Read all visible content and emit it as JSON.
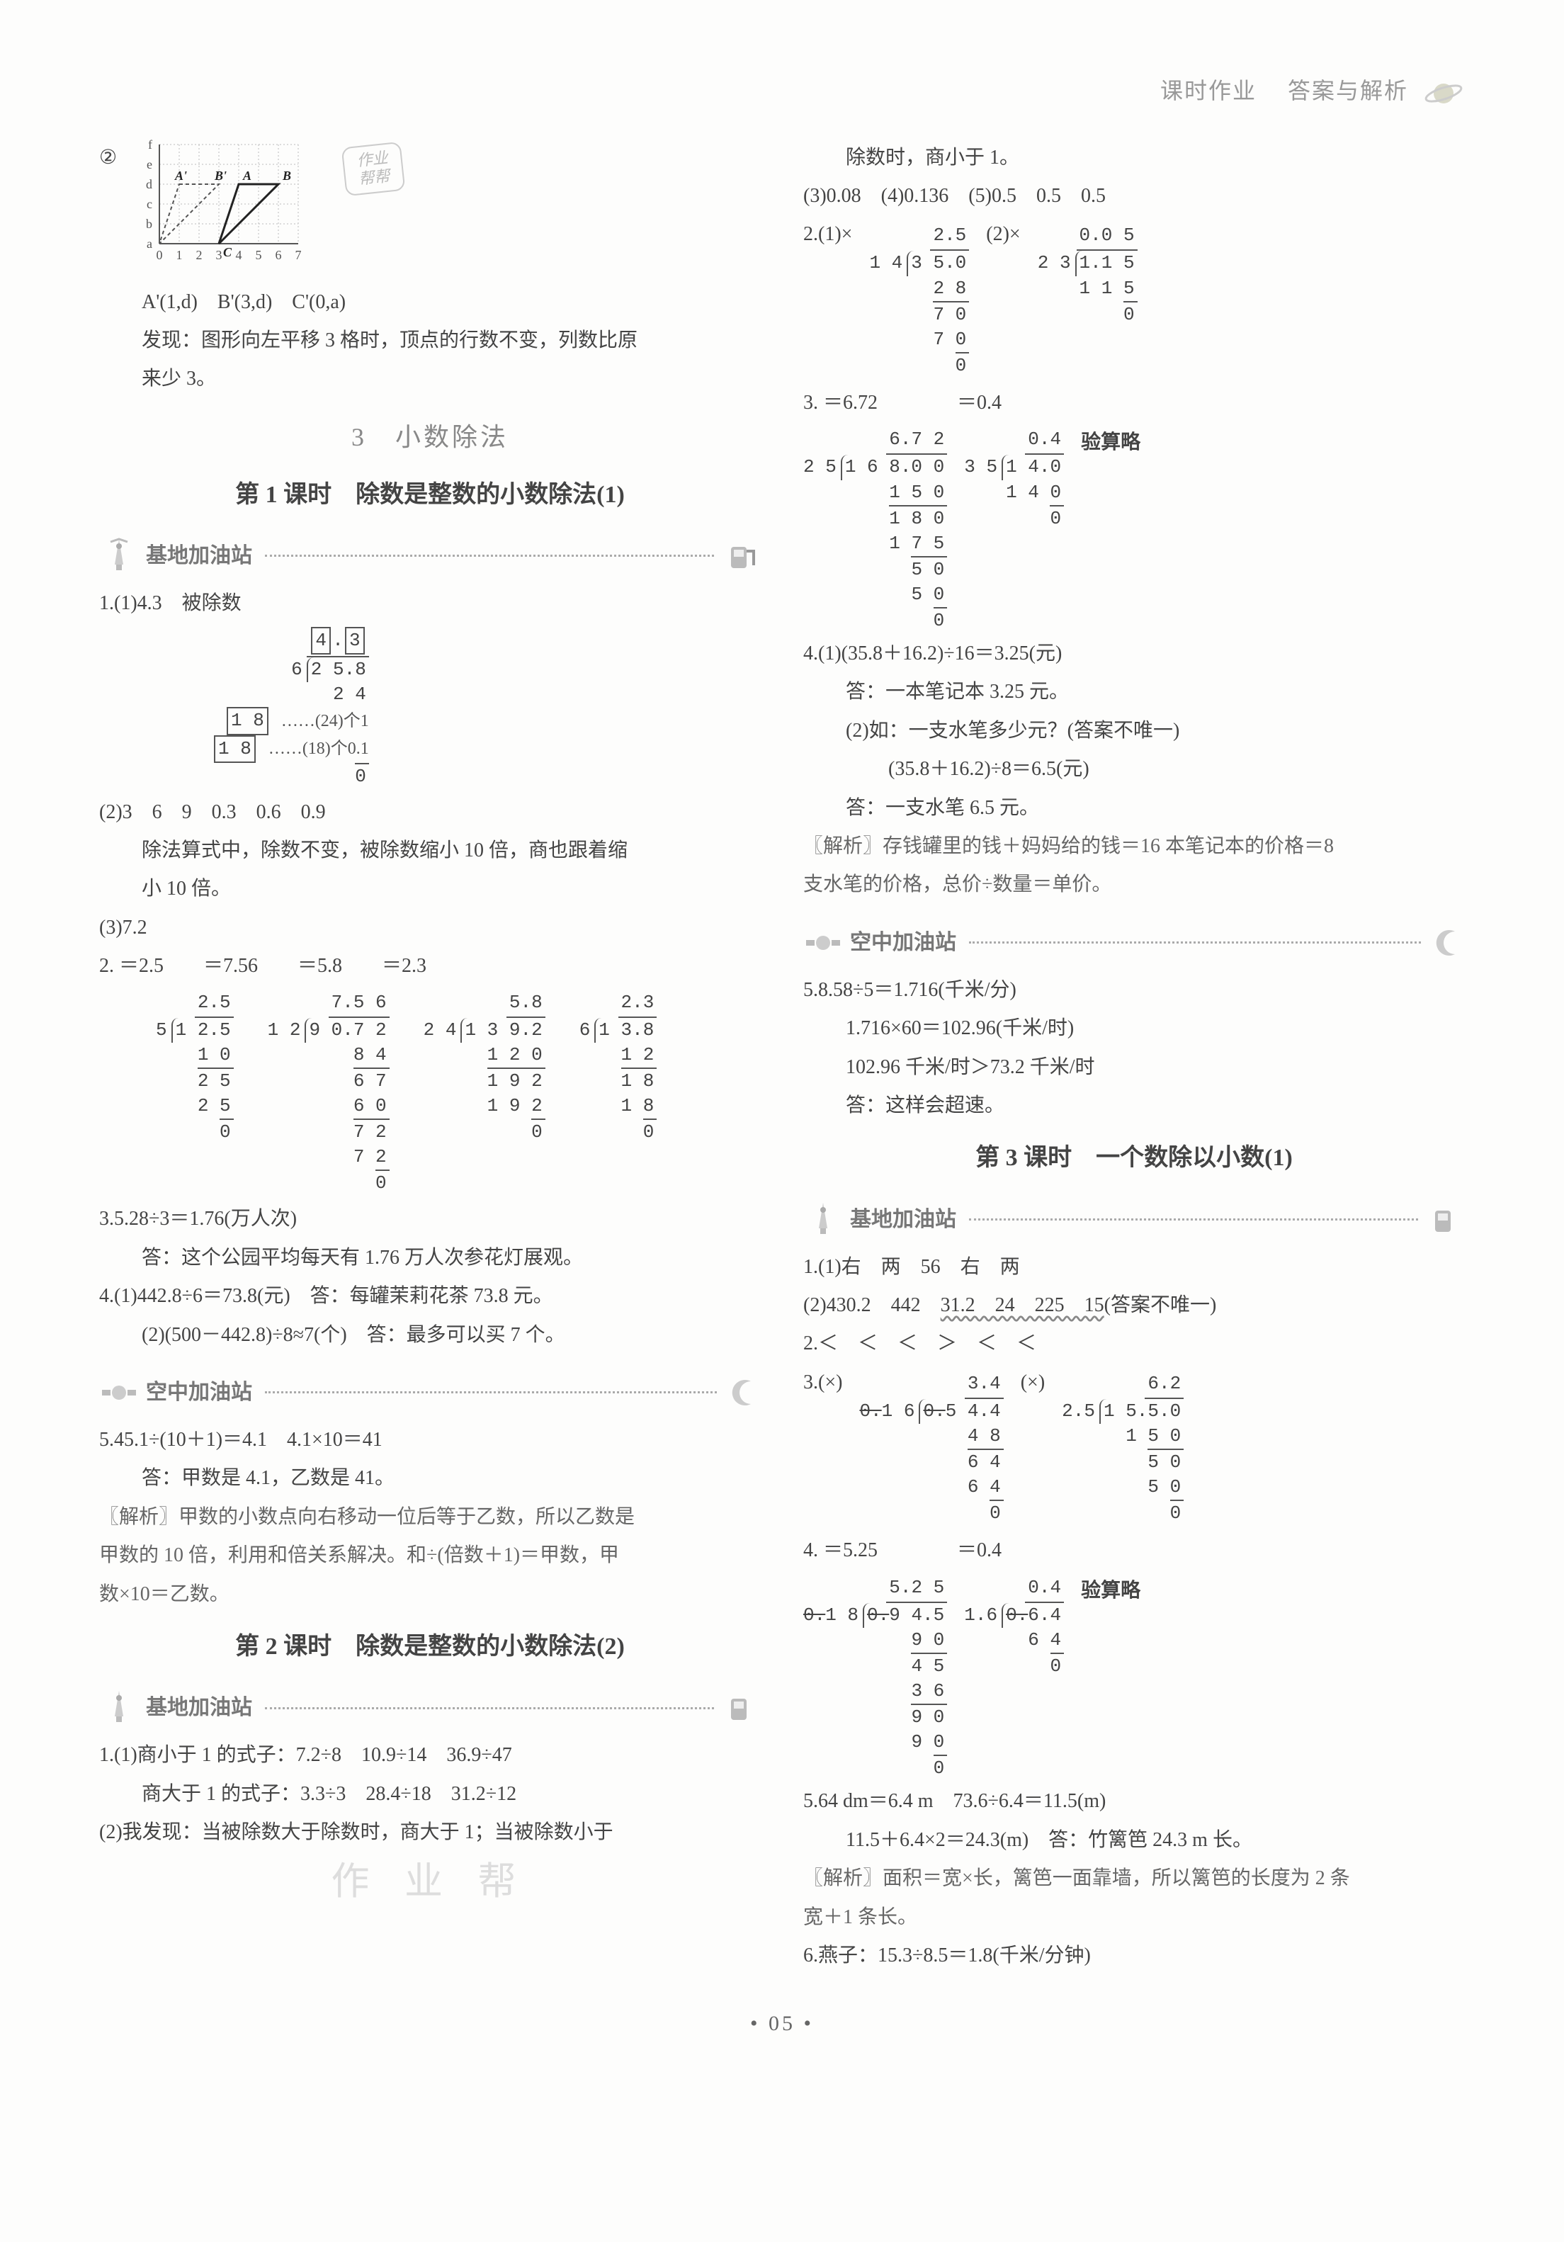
{
  "header": {
    "t1": "课时作业",
    "t2": "答案与解析"
  },
  "left": {
    "chart": {
      "circled2": "②",
      "row_labels": [
        "f",
        "e",
        "d",
        "c",
        "b",
        "a"
      ],
      "col_labels": [
        "0",
        "1",
        "2",
        "3",
        "4",
        "5",
        "6",
        "7"
      ],
      "pts_main": [
        "A'",
        "A",
        "B'",
        "B",
        "C"
      ],
      "cell": 28,
      "grid_color": "#bbb",
      "line_color": "#222",
      "dash_color": "#555",
      "stamp1": "作业",
      "stamp2": "帮帮",
      "coords": "A'(1,d)　B'(3,d)　C'(0,a)",
      "finding1": "发现：图形向左平移 3 格时，顶点的行数不变，列数比原",
      "finding2": "来少 3。"
    },
    "chapter": "3　小数除法",
    "lesson1": "第 1 课时　除数是整数的小数除法(1)",
    "station_base": "基地加油站",
    "q1_1": "1.(1)4.3　被除数",
    "ld_43": {
      "q_boxes": [
        "4",
        ".",
        "3"
      ],
      "divisor": "6",
      "dividend": "2 5.8",
      "steps": [
        {
          "v": "2 4",
          "rule": false,
          "annot": ""
        },
        {
          "v": "1  8",
          "rule": true,
          "annot": "……(24)个1",
          "box": true
        },
        {
          "v": "1  8",
          "rule": false,
          "annot": "……(18)个0.1",
          "box": true
        },
        {
          "v": "0",
          "rule": true,
          "annot": ""
        }
      ]
    },
    "q1_2a": "(2)3　6　9　0.3　0.6　0.9",
    "q1_2b": "除法算式中，除数不变，被除数缩小 10 倍，商也跟着缩",
    "q1_2c": "小 10 倍。",
    "q1_3": "(3)7.2",
    "q2_head": "2. ＝2.5　　＝7.56　　＝5.8　　＝2.3",
    "q2_divs": [
      {
        "q": "2.5",
        "dvs": "5",
        "dvd": "1 2.5",
        "steps": [
          "1 0",
          "2 5",
          "2 5",
          "0"
        ]
      },
      {
        "q": "7.5 6",
        "dvs": "1 2",
        "dvd": "9 0.7 2",
        "steps": [
          "8 4",
          "6 7",
          "6 0",
          "7 2",
          "7 2",
          "0"
        ]
      },
      {
        "q": "5.8",
        "dvs": "2 4",
        "dvd": "1 3 9.2",
        "steps": [
          "1 2 0",
          "1 9 2",
          "1 9 2",
          "0"
        ]
      },
      {
        "q": "2.3",
        "dvs": "6",
        "dvd": "1 3.8",
        "steps": [
          "1 2",
          "1 8",
          "1 8",
          "0"
        ]
      }
    ],
    "q3a": "3.5.28÷3＝1.76(万人次)",
    "q3b": "答：这个公园平均每天有 1.76 万人次参花灯展观。",
    "q4a": "4.(1)442.8÷6＝73.8(元)　答：每罐茉莉花茶 73.8 元。",
    "q4b": "(2)(500－442.8)÷8≈7(个)　答：最多可以买 7 个。",
    "station_sky": "空中加油站",
    "q5a": "5.45.1÷(10＋1)＝4.1　4.1×10＝41",
    "q5b": "答：甲数是 4.1，乙数是 41。",
    "q5c": "〖解析〗甲数的小数点向右移动一位后等于乙数，所以乙数是",
    "q5d": "甲数的 10 倍，利用和倍关系解决。和÷(倍数＋1)＝甲数，甲",
    "q5e": "数×10＝乙数。",
    "lesson2": "第 2 课时　除数是整数的小数除法(2)",
    "l2_q1a": "1.(1)商小于 1 的式子：7.2÷8　10.9÷14　36.9÷47",
    "l2_q1b": "商大于 1 的式子：3.3÷3　28.4÷18　31.2÷12",
    "l2_q1c": "(2)我发现：当被除数大于除数时，商大于 1；当被除数小于",
    "ghost": "作 业 帮"
  },
  "right": {
    "r0": "除数时，商小于 1。",
    "r1": "(3)0.08　(4)0.136　(5)0.5　0.5　0.5",
    "r2_head": "2.(1)×",
    "r2_head2": "(2)×",
    "r2_divs": [
      {
        "q": "2.5",
        "dvs": "1 4",
        "dvd": "3 5.0",
        "steps": [
          "2 8",
          "7 0",
          "7 0",
          "0"
        ]
      },
      {
        "q": "0.0 5",
        "dvs": "2 3",
        "dvd": "1.1 5",
        "steps": [
          "1 1 5",
          "0"
        ]
      }
    ],
    "r3_head": "3. ＝6.72　　　　＝0.4",
    "r3_note": "验算略",
    "r3_divs": [
      {
        "q": "6.7 2",
        "dvs": "2 5",
        "dvd": "1 6 8.0 0",
        "steps": [
          "1 5 0",
          "1 8 0",
          "1 7 5",
          "5 0",
          "5 0",
          "0"
        ]
      },
      {
        "q": "0.4",
        "dvs": "3 5",
        "dvd": "1 4.0",
        "steps": [
          "1 4 0",
          "0"
        ]
      }
    ],
    "r4a": "4.(1)(35.8＋16.2)÷16＝3.25(元)",
    "r4b": "答：一本笔记本 3.25 元。",
    "r4c": "(2)如：一支水笔多少元？(答案不唯一)",
    "r4d": "(35.8＋16.2)÷8＝6.5(元)",
    "r4e": "答：一支水笔 6.5 元。",
    "r4f": "〖解析〗存钱罐里的钱＋妈妈给的钱＝16 本笔记本的价格＝8",
    "r4g": "支水笔的价格，总价÷数量＝单价。",
    "r5a": "5.8.58÷5＝1.716(千米/分)",
    "r5b": "1.716×60＝102.96(千米/时)",
    "r5c": "102.96 千米/时＞73.2 千米/时",
    "r5d": "答：这样会超速。",
    "lesson3": "第 3 课时　一个数除以小数(1)",
    "l3_q1a": "1.(1)右　两　56　右　两",
    "l3_q1b_pre": "(2)430.2　442　",
    "l3_q1b_wavy": "31.2　24　225　15",
    "l3_q1b_post": "(答案不唯一)",
    "l3_q2": "2.＜　＜　＜　＞　＜　＜",
    "l3_q3a": "3.(×)",
    "l3_q3b": "(×)",
    "l3_q3_divs": [
      {
        "q": "3.4",
        "dvs": "0.1 6",
        "dvs_strike": "0.",
        "dvd": "0.5 4.4",
        "dvd_strike": "0.",
        "steps": [
          "4 8",
          "6 4",
          "6 4",
          "0"
        ]
      },
      {
        "q": "6.2",
        "dvs": "2.5",
        "dvs_strike": "",
        "dvd": "1 5.5.0",
        "dvd_strike": "",
        "steps": [
          "1 5 0",
          "5 0",
          "5 0",
          "0"
        ]
      }
    ],
    "l3_q4_head": "4. ＝5.25　　　　＝0.4",
    "l3_q4_note": "验算略",
    "l3_q4_divs": [
      {
        "q": "5.2 5",
        "dvs": "0.1 8",
        "dvs_strike": "0.",
        "dvd": "0.9 4.5",
        "dvd_strike": "0.",
        "steps": [
          "9 0",
          "4 5",
          "3 6",
          "9 0",
          "9 0",
          "0"
        ]
      },
      {
        "q": "0.4",
        "dvs": "1.6",
        "dvs_strike": "",
        "dvd": "0.6.4",
        "dvd_strike": "0.",
        "steps": [
          "6 4",
          "0"
        ]
      }
    ],
    "l3_q5a": "5.64 dm＝6.4 m　73.6÷6.4＝11.5(m)",
    "l3_q5b": "11.5＋6.4×2＝24.3(m)　答：竹篱笆 24.3 m 长。",
    "l3_q5c": "〖解析〗面积＝宽×长，篱笆一面靠墙，所以篱笆的长度为 2 条",
    "l3_q5d": "宽＋1 条长。",
    "l3_q6": "6.燕子：15.3÷8.5＝1.8(千米/分钟)"
  },
  "page_num": "• 05 •"
}
